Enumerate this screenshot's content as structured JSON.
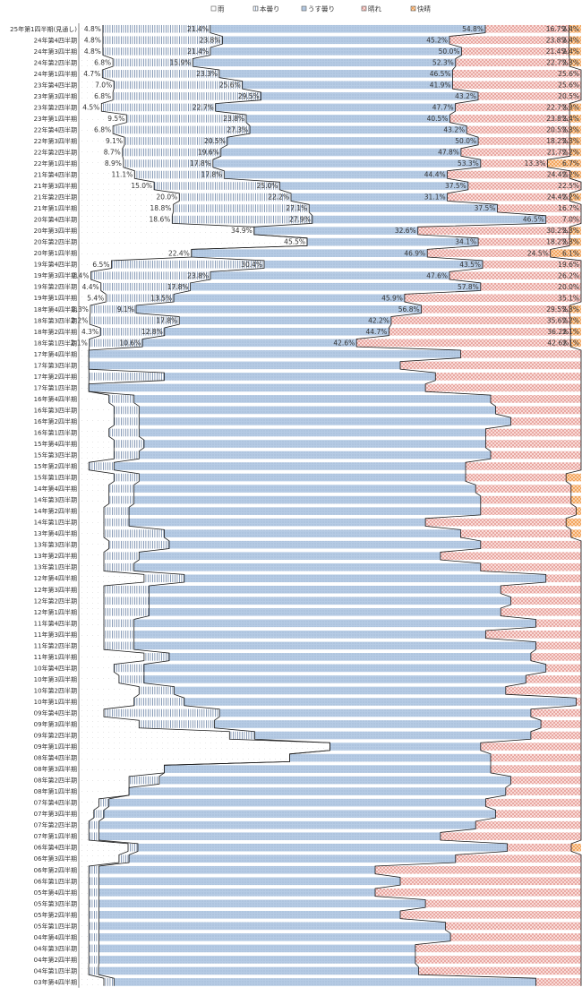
{
  "chart_data": {
    "type": "bar",
    "stacked": "100%",
    "orientation": "horizontal",
    "title": "",
    "xlabel": "",
    "ylabel": "",
    "xlim": [
      0,
      100
    ],
    "legend_position": "top",
    "categories": [
      "25年第1四半期(見通し)",
      "24年第4四半期",
      "24年第3四半期",
      "24年第2四半期",
      "24年第1四半期",
      "23年第4四半期",
      "23年第3四半期",
      "23年第2四半期",
      "23年第1四半期",
      "22年第4四半期",
      "22年第3四半期",
      "22年第2四半期",
      "22年第1四半期",
      "21年第4四半期",
      "21年第3四半期",
      "21年第2四半期",
      "21年第1四半期",
      "20年第4四半期",
      "20年第3四半期",
      "20年第2四半期",
      "20年第1四半期",
      "19年第4四半期",
      "19年第3四半期",
      "19年第2四半期",
      "19年第1四半期",
      "18年第4四半期",
      "18年第3四半期",
      "18年第2四半期",
      "18年第1四半期",
      "17年第4四半期",
      "17年第3四半期",
      "17年第2四半期",
      "17年第1四半期",
      "16年第4四半期",
      "16年第3四半期",
      "16年第2四半期",
      "16年第1四半期",
      "15年第4四半期",
      "15年第3四半期",
      "15年第2四半期",
      "15年第1四半期",
      "14年第4四半期",
      "14年第3四半期",
      "14年第2四半期",
      "14年第1四半期",
      "13年第4四半期",
      "13年第3四半期",
      "13年第2四半期",
      "13年第1四半期",
      "12年第4四半期",
      "12年第3四半期",
      "12年第2四半期",
      "12年第1四半期",
      "11年第4四半期",
      "11年第3四半期",
      "11年第2四半期",
      "11年第1四半期",
      "10年第4四半期",
      "10年第3四半期",
      "10年第2四半期",
      "10年第1四半期",
      "09年第4四半期",
      "09年第3四半期",
      "09年第2四半期",
      "09年第1四半期",
      "08年第4四半期",
      "08年第3四半期",
      "08年第2四半期",
      "08年第1四半期",
      "07年第4四半期",
      "07年第3四半期",
      "07年第2四半期",
      "07年第1四半期",
      "06年第4四半期",
      "06年第3四半期",
      "06年第2四半期",
      "06年第1四半期",
      "05年第4四半期",
      "05年第3四半期",
      "05年第2四半期",
      "05年第1四半期",
      "04年第4四半期",
      "04年第3四半期",
      "04年第2四半期",
      "04年第1四半期",
      "03年第4四半期"
    ],
    "series": [
      {
        "name": "雨",
        "color": "#ffffff",
        "pattern": "dots-sparse",
        "values": [
          4.8,
          4.8,
          4.8,
          6.8,
          4.7,
          7.0,
          6.8,
          4.5,
          9.5,
          6.8,
          9.1,
          8.7,
          8.9,
          11.1,
          15.0,
          20.0,
          18.8,
          18.6,
          34.9,
          45.5,
          22.4,
          6.5,
          2.4,
          4.4,
          5.4,
          2.3,
          2.2,
          4.3,
          2.1,
          2,
          2,
          2,
          2,
          6,
          7,
          7,
          6,
          7,
          7,
          2,
          7,
          6,
          6,
          5,
          5,
          5,
          6,
          5,
          5,
          13,
          5,
          5,
          5,
          5,
          5,
          5,
          13,
          7,
          8,
          12,
          11,
          5,
          12,
          30,
          50,
          42,
          17,
          10,
          10,
          4,
          3,
          2,
          2,
          10,
          8,
          2,
          2,
          2,
          2,
          2,
          2,
          2,
          2,
          2,
          2,
          5
        ]
      },
      {
        "name": "本曇り",
        "color": "#ffffff",
        "pattern": "vertical-lines",
        "values": [
          21.4,
          23.8,
          21.4,
          15.9,
          23.3,
          25.6,
          29.5,
          22.7,
          23.8,
          27.3,
          20.5,
          19.6,
          17.8,
          17.8,
          25.0,
          22.2,
          27.1,
          27.9,
          0,
          0,
          0,
          30.4,
          23.8,
          17.8,
          13.5,
          9.1,
          17.8,
          12.8,
          10.6,
          0,
          0,
          15,
          0,
          5,
          5,
          5,
          6,
          6,
          5,
          5,
          5,
          5,
          5,
          5,
          5,
          12,
          12,
          7,
          6,
          8,
          9,
          9,
          9,
          6,
          6,
          6,
          5,
          6,
          5,
          7,
          10,
          23,
          15,
          5,
          0,
          0,
          0,
          6,
          0,
          2,
          2,
          2,
          2,
          2,
          2,
          2,
          2,
          2,
          2,
          2,
          2,
          2,
          2,
          2,
          2,
          2
        ]
      },
      {
        "name": "うす曇り",
        "color": "#b6cbe4",
        "pattern": "dots",
        "values": [
          54.8,
          45.2,
          50.0,
          52.3,
          46.5,
          41.9,
          43.2,
          47.7,
          40.5,
          43.2,
          50.0,
          47.8,
          53.3,
          44.4,
          37.5,
          31.1,
          37.5,
          46.5,
          32.6,
          34.1,
          46.9,
          43.5,
          47.6,
          57.8,
          45.9,
          56.8,
          42.2,
          44.7,
          42.6,
          74,
          62,
          54,
          67,
          71,
          71,
          74,
          69,
          68,
          70,
          70,
          65,
          68,
          69,
          70,
          59,
          59,
          62,
          60,
          69,
          72,
          70,
          72,
          70,
          80,
          70,
          80,
          72,
          80,
          76,
          66,
          78,
          62,
          65,
          55,
          30,
          40,
          65,
          70,
          75,
          75,
          78,
          75,
          68,
          75,
          65,
          55,
          60,
          55,
          65,
          60,
          69,
          70,
          63,
          63,
          65,
          84
        ]
      },
      {
        "name": "晴れ",
        "color": "#f4c9c5",
        "pattern": "checks",
        "values": [
          16.7,
          23.8,
          21.4,
          22.7,
          25.6,
          25.6,
          20.5,
          22.7,
          23.8,
          20.5,
          18.2,
          21.7,
          13.3,
          24.4,
          22.5,
          24.4,
          16.7,
          7.0,
          30.2,
          18.2,
          24.5,
          19.6,
          26.2,
          20.0,
          35.1,
          29.5,
          35.6,
          36.2,
          42.6,
          24,
          36,
          29,
          31,
          18,
          17,
          14,
          19,
          19,
          18,
          23,
          20,
          19,
          18,
          19,
          28,
          22,
          20,
          28,
          20,
          7,
          16,
          14,
          16,
          9,
          19,
          9,
          10,
          7,
          11,
          15,
          1,
          10,
          8,
          10,
          20,
          18,
          18,
          14,
          15,
          19,
          17,
          21,
          28,
          13,
          25,
          41,
          36,
          41,
          31,
          36,
          27,
          26,
          33,
          33,
          33,
          9
        ]
      },
      {
        "name": "快晴",
        "color": "#f7be89",
        "pattern": "checks",
        "values": [
          2.4,
          2.4,
          2.4,
          2.3,
          0,
          0,
          0,
          2.3,
          2.3,
          2.3,
          2.3,
          2.2,
          6.7,
          2.2,
          0,
          2.2,
          0,
          0,
          2.3,
          2.3,
          6.1,
          0,
          0,
          0,
          0,
          2.3,
          2.2,
          2.1,
          2.1,
          0,
          0,
          0,
          0,
          0,
          0,
          0,
          0,
          0,
          0,
          0,
          3,
          2,
          2,
          1,
          3,
          2,
          0,
          0,
          0,
          0,
          0,
          0,
          0,
          0,
          0,
          0,
          0,
          0,
          0,
          0,
          0,
          0,
          0,
          0,
          0,
          0,
          0,
          0,
          0,
          0,
          0,
          0,
          0,
          2,
          0,
          0,
          0,
          0,
          0,
          0,
          0,
          0,
          0,
          0,
          0,
          0
        ]
      }
    ],
    "labels": [
      [
        "4.8%",
        "21.4%",
        "54.8%",
        "16.7%",
        "2.4%"
      ],
      [
        "4.8%",
        "23.8%",
        "45.2%",
        "23.8%",
        "2.4%"
      ],
      [
        "4.8%",
        "21.4%",
        "50.0%",
        "21.4%",
        "2.4%"
      ],
      [
        "6.8%",
        "15.9%",
        "52.3%",
        "22.7%",
        "2.3%"
      ],
      [
        "4.7%",
        "23.3%",
        "46.5%",
        "25.6%",
        ""
      ],
      [
        "7.0%",
        "25.6%",
        "41.9%",
        "25.6%",
        ""
      ],
      [
        "6.8%",
        "29.5%",
        "43.2%",
        "20.5%",
        ""
      ],
      [
        "4.5%",
        "22.7%",
        "47.7%",
        "22.7%",
        "2.3%"
      ],
      [
        "9.5%",
        "23.8%",
        "40.5%",
        "23.8%",
        "2.4%"
      ],
      [
        "6.8%",
        "27.3%",
        "43.2%",
        "20.5%",
        "2.3%"
      ],
      [
        "9.1%",
        "20.5%",
        "50.0%",
        "18.2%",
        "2.3%"
      ],
      [
        "8.7%",
        "19.6%",
        "47.8%",
        "21.7%",
        "2.2%"
      ],
      [
        "8.9%",
        "17.8%",
        "53.3%",
        "13.3%",
        "6.7%"
      ],
      [
        "11.1%",
        "17.8%",
        "44.4%",
        "24.4%",
        "2.2%"
      ],
      [
        "15.0%",
        "25.0%",
        "37.5%",
        "22.5%",
        ""
      ],
      [
        "20.0%",
        "22.2%",
        "31.1%",
        "24.4%",
        "2.2%"
      ],
      [
        "18.8%",
        "27.1%",
        "37.5%",
        "16.7%",
        ""
      ],
      [
        "18.6%",
        "27.9%",
        "46.5%",
        "7.0%",
        ""
      ],
      [
        "34.9%",
        "",
        "32.6%",
        "30.2%",
        "2.3%"
      ],
      [
        "45.5%",
        "",
        "34.1%",
        "18.2%",
        "2.3%"
      ],
      [
        "22.4%",
        "",
        "46.9%",
        "24.5%",
        "6.1%"
      ],
      [
        "6.5%",
        "30.4%",
        "43.5%",
        "19.6%",
        ""
      ],
      [
        "2.4%",
        "23.8%",
        "47.6%",
        "26.2%",
        ""
      ],
      [
        "4.4%",
        "17.8%",
        "57.8%",
        "20.0%",
        ""
      ],
      [
        "5.4%",
        "13.5%",
        "45.9%",
        "35.1%",
        ""
      ],
      [
        "2.3%",
        "9.1%",
        "56.8%",
        "29.5%",
        "2.3%"
      ],
      [
        "2.2%",
        "17.8%",
        "42.2%",
        "35.6%",
        "2.2%"
      ],
      [
        "4.3%",
        "12.8%",
        "44.7%",
        "36.2%",
        "2.1%"
      ],
      [
        "2.1%",
        "10.6%",
        "42.6%",
        "42.6%",
        "2.1%"
      ]
    ]
  }
}
